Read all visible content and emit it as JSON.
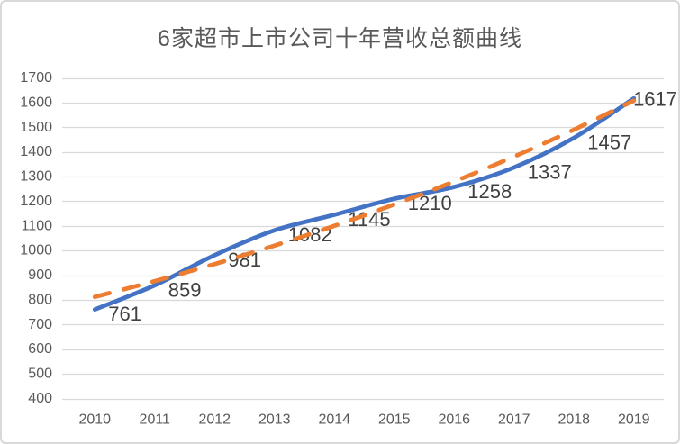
{
  "frame": {
    "background": "#ffffff",
    "border_color": "#d9d9d9"
  },
  "chart_data": {
    "type": "line",
    "title": "6家超市上市公司十年营收总额曲线",
    "title_color": "#595959",
    "categories": [
      "2010",
      "2011",
      "2012",
      "2013",
      "2014",
      "2015",
      "2016",
      "2017",
      "2018",
      "2019"
    ],
    "series": [
      {
        "id": "revenue-total-line",
        "role": "data",
        "line_style": "solid",
        "smooth": true,
        "color": "#4472C4",
        "values": [
          761,
          859,
          981,
          1082,
          1145,
          1210,
          1258,
          1337,
          1457,
          1617
        ],
        "data_labels": [
          761,
          859,
          981,
          1082,
          1145,
          1210,
          1258,
          1337,
          1457,
          1617
        ],
        "data_label_color": "#404040"
      },
      {
        "id": "trendline",
        "role": "trendline",
        "line_style": "dashed",
        "smooth": true,
        "color": "#ED7D31",
        "values": [
          812,
          876,
          945,
          1020,
          1100,
          1187,
          1280,
          1381,
          1490,
          1608
        ],
        "data_labels": null
      }
    ],
    "xlabel": "",
    "ylabel": "",
    "ylim": [
      400,
      1700
    ],
    "ytick_interval": 100,
    "yticks": [
      1700,
      1600,
      1500,
      1400,
      1300,
      1200,
      1100,
      1000,
      900,
      800,
      700,
      600,
      500,
      400
    ],
    "grid": true,
    "gridline_color": "#D9D9D9",
    "axis_text_color": "#595959",
    "legend": "none"
  }
}
